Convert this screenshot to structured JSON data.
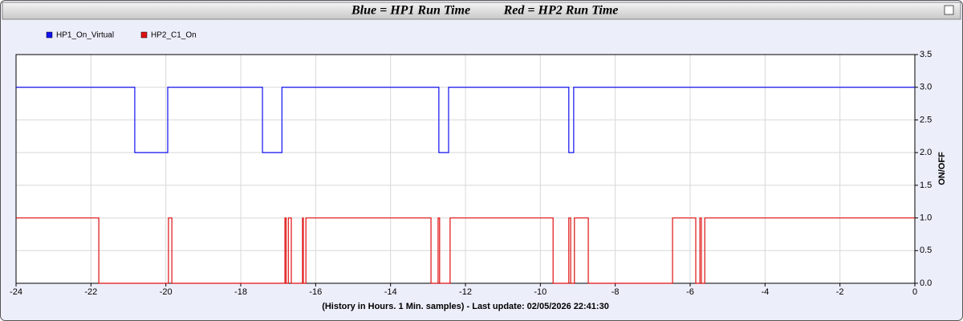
{
  "chart_data": {
    "type": "line",
    "titles": [
      "Blue = HP1 Run Time",
      "Red = HP2 Run Time"
    ],
    "xlabel": "(History in Hours. 1 Min. samples) - Last update: 02/05/2026 22:41:30",
    "ylabel": "ON/OFF",
    "xlim": [
      -24,
      0
    ],
    "xticks": [
      -24,
      -22,
      -20,
      -18,
      -16,
      -14,
      -12,
      -10,
      -8,
      -6,
      -4,
      -2,
      0
    ],
    "ylim": [
      0,
      3.5
    ],
    "yticks": [
      {
        "value": 0,
        "label": "0.0"
      },
      {
        "value": 0.5,
        "label": "0.5"
      },
      {
        "value": 1,
        "label": "1.0"
      },
      {
        "value": 1.5,
        "label": "1.5"
      },
      {
        "value": 2,
        "label": "2.0"
      },
      {
        "value": 2.5,
        "label": "2.5"
      },
      {
        "value": 3,
        "label": "3.0"
      },
      {
        "value": 3.5,
        "label": "3.5"
      }
    ],
    "grid": true,
    "legend": "top-left",
    "series": [
      {
        "name": "HP1_On_Virtual",
        "color": "#1010f0",
        "x": [
          -24,
          -20.83,
          -20.83,
          -19.95,
          -19.95,
          -17.42,
          -17.42,
          -16.9,
          -16.9,
          -12.71,
          -12.71,
          -12.45,
          -12.45,
          -9.24,
          -9.24,
          -9.11,
          -9.11,
          0
        ],
        "values": [
          3,
          3,
          2,
          2,
          3,
          3,
          2,
          2,
          3,
          3,
          2,
          2,
          3,
          3,
          2,
          2,
          3,
          3
        ]
      },
      {
        "name": "HP2_C1_On",
        "color": "#e01010",
        "x": [
          -24,
          -21.79,
          -21.79,
          -19.93,
          -19.93,
          -19.84,
          -19.84,
          -16.82,
          -16.82,
          -16.79,
          -16.79,
          -16.73,
          -16.73,
          -16.65,
          -16.65,
          -16.35,
          -16.35,
          -16.33,
          -16.33,
          -16.26,
          -16.26,
          -12.92,
          -12.92,
          -12.73,
          -12.73,
          -12.69,
          -12.69,
          -12.41,
          -12.41,
          -9.66,
          -9.66,
          -9.24,
          -9.24,
          -9.19,
          -9.19,
          -9.09,
          -9.09,
          -8.72,
          -8.72,
          -6.47,
          -6.47,
          -5.85,
          -5.85,
          -5.74,
          -5.74,
          -5.7,
          -5.7,
          -5.61,
          -5.61,
          0
        ],
        "values": [
          1,
          1,
          0,
          0,
          1,
          1,
          0,
          0,
          1,
          1,
          0,
          0,
          1,
          1,
          0,
          0,
          1,
          1,
          0,
          0,
          1,
          1,
          0,
          0,
          1,
          1,
          0,
          0,
          1,
          1,
          0,
          0,
          1,
          1,
          0,
          0,
          1,
          1,
          0,
          0,
          1,
          1,
          0,
          0,
          1,
          1,
          0,
          0,
          1,
          1
        ]
      }
    ]
  }
}
